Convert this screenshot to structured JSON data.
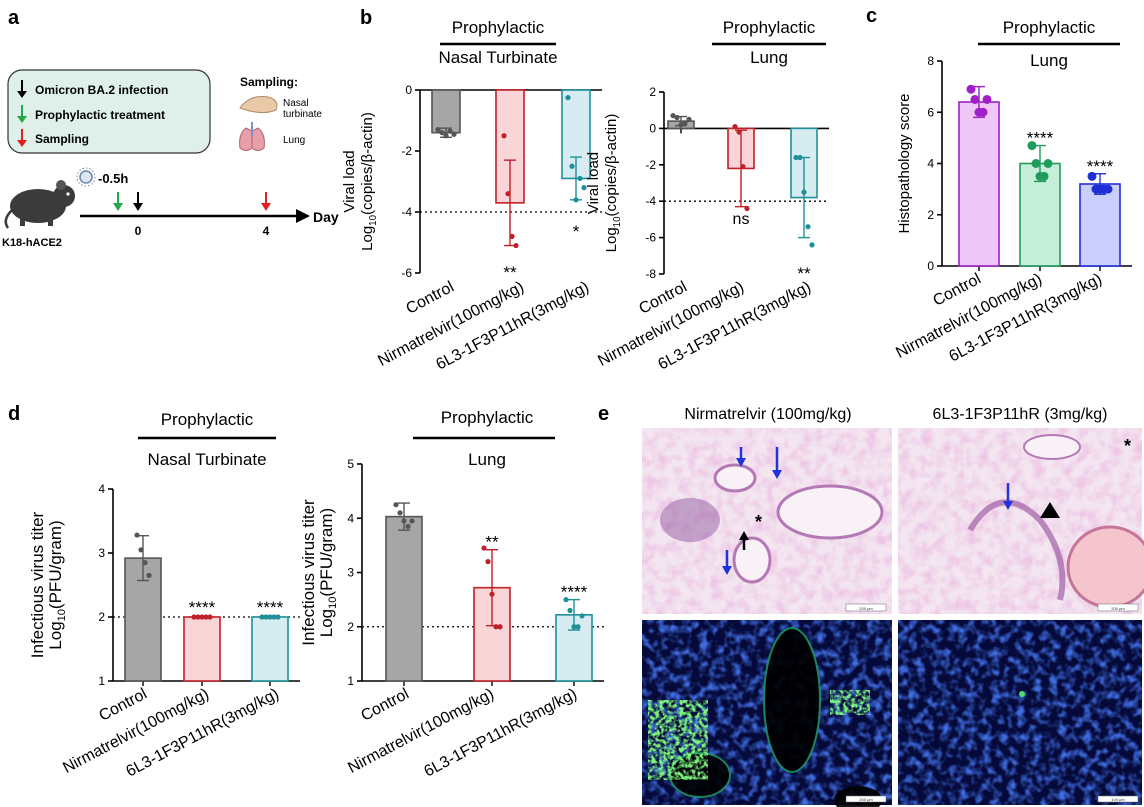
{
  "panel_letters": {
    "a": "a",
    "b": "b",
    "c": "c",
    "d": "d",
    "e": "e"
  },
  "schematic": {
    "legend": [
      {
        "label": "Omicron BA.2 infection",
        "color": "#000000"
      },
      {
        "label": "Prophylactic treatment",
        "color": "#22a846"
      },
      {
        "label": "Sampling",
        "color": "#e02020"
      }
    ],
    "sampling_title": "Sampling:",
    "nasal_label_1": "Nasal",
    "nasal_label_2": "turbinate",
    "lung_label": "Lung",
    "mouse_label": "K18-hACE2",
    "dose_time": "-0.5h",
    "tick_0": "0",
    "tick_4": "4",
    "axis_label": "Day"
  },
  "common": {
    "categories": [
      "Control",
      "Nirmatrelvir(100mg/kg)",
      "6L3-1F3P11hR(3mg/kg)"
    ],
    "prophylactic": "Prophylactic",
    "nasal": "Nasal Turbinate",
    "lung": "Lung",
    "viral_ylabel_1": "Viral load",
    "viral_ylabel_2": "Log",
    "viral_ylabel_sub": "10",
    "viral_ylabel_3": "(copies/β-actin)",
    "histo_ylabel": "Histopathology score",
    "pfu_ylabel_1": "Infectious virus titer",
    "pfu_ylabel_2": "Log",
    "pfu_ylabel_sub": "10",
    "pfu_ylabel_3": "(PFU/gram)"
  },
  "colors": {
    "control": "#555555",
    "nirmatrelvir": "#c0202a",
    "antibody": "#1f8f9a"
  },
  "chart_data": [
    {
      "id": "b-nasal",
      "type": "bar",
      "title": "Prophylactic",
      "subtitle": "Nasal Turbinate",
      "ylabel": "Viral load Log10(copies/β-actin)",
      "categories": [
        "Control",
        "Nirmatrelvir(100mg/kg)",
        "6L3-1F3P11hR(3mg/kg)"
      ],
      "values": [
        -1.4,
        -3.7,
        -2.9
      ],
      "errors": [
        0.15,
        1.4,
        0.7
      ],
      "ylim": [
        -6,
        0
      ],
      "yticks": [
        0,
        -2,
        -4,
        -6
      ],
      "baseline": "top",
      "dotted_line": -4,
      "points": [
        [
          -1.3,
          -1.4,
          -1.5,
          -1.35,
          -1.45
        ],
        [
          -1.5,
          -3.4,
          -4.8,
          -5.1
        ],
        [
          -0.25,
          -2.5,
          -3.6,
          -2.9,
          -3.2
        ]
      ],
      "significance": [
        "",
        "**",
        "*"
      ]
    },
    {
      "id": "b-lung",
      "type": "bar",
      "title": "Prophylactic",
      "subtitle": "Lung",
      "ylabel": "Viral load Log10(copies/β-actin)",
      "categories": [
        "Control",
        "Nirmatrelvir(100mg/kg)",
        "6L3-1F3P11hR(3mg/kg)"
      ],
      "values": [
        0.4,
        -2.2,
        -3.8
      ],
      "errors": [
        0.25,
        2.1,
        2.2
      ],
      "ylim": [
        -8,
        2
      ],
      "yticks": [
        2,
        0,
        -2,
        -4,
        -6,
        -8
      ],
      "baseline": "zero",
      "dotted_line": -4,
      "points": [
        [
          0.7,
          0.6,
          0.2,
          0.3,
          0.5
        ],
        [
          0.1,
          -0.2,
          -2.1,
          -4.4
        ],
        [
          -1.6,
          -1.6,
          -3.5,
          -5.4,
          -6.4
        ]
      ],
      "significance": [
        "",
        "ns",
        "**"
      ]
    },
    {
      "id": "c-lung",
      "type": "bar",
      "title": "Prophylactic",
      "subtitle": "Lung",
      "ylabel": "Histopathology score",
      "categories": [
        "Control",
        "Nirmatrelvir(100mg/kg)",
        "6L3-1F3P11hR(3mg/kg)"
      ],
      "values": [
        6.4,
        4.0,
        3.2
      ],
      "errors": [
        0.6,
        0.7,
        0.4
      ],
      "ylim": [
        0,
        8
      ],
      "yticks": [
        0,
        2,
        4,
        6,
        8
      ],
      "baseline": "zero",
      "points": [
        [
          6.9,
          6.5,
          6.0,
          6.0,
          6.5
        ],
        [
          4.7,
          4.0,
          3.5,
          3.5,
          4.0
        ],
        [
          3.5,
          3.0,
          3.0,
          3.0,
          3.0
        ]
      ],
      "significance": [
        "",
        "****",
        "****"
      ]
    },
    {
      "id": "d-nasal",
      "type": "bar",
      "title": "Prophylactic",
      "subtitle": "Nasal Turbinate",
      "ylabel": "Infectious virus titer Log10(PFU/gram)",
      "categories": [
        "Control",
        "Nirmatrelvir(100mg/kg)",
        "6L3-1F3P11hR(3mg/kg)"
      ],
      "values": [
        2.92,
        2.0,
        2.0
      ],
      "errors": [
        0.35,
        0,
        0
      ],
      "ylim": [
        1,
        4
      ],
      "yticks": [
        1,
        2,
        3,
        4
      ],
      "baseline": "bottom",
      "dotted_line": 2,
      "points": [
        [
          3.28,
          3.05,
          2.85,
          2.65
        ],
        [
          2.0,
          2.0,
          2.0,
          2.0,
          2.0
        ],
        [
          2.0,
          2.0,
          2.0,
          2.0,
          2.0
        ]
      ],
      "significance": [
        "",
        "****",
        "****"
      ]
    },
    {
      "id": "d-lung",
      "type": "bar",
      "title": "Prophylactic",
      "subtitle": "Lung",
      "ylabel": "Infectious virus titer Log10(PFU/gram)",
      "categories": [
        "Control",
        "Nirmatrelvir(100mg/kg)",
        "6L3-1F3P11hR(3mg/kg)"
      ],
      "values": [
        4.03,
        2.72,
        2.22
      ],
      "errors": [
        0.25,
        0.7,
        0.28
      ],
      "ylim": [
        1,
        5
      ],
      "yticks": [
        1,
        2,
        3,
        4,
        5
      ],
      "baseline": "bottom",
      "dotted_line": 2,
      "points": [
        [
          4.25,
          4.1,
          3.95,
          3.85,
          3.95
        ],
        [
          3.45,
          3.2,
          2.6,
          2.0,
          2.0
        ],
        [
          2.5,
          2.3,
          2.0,
          2.0,
          2.2
        ]
      ],
      "significance": [
        "",
        "**",
        "****"
      ]
    }
  ],
  "histology": {
    "col1_title": "Nirmatrelvir (100mg/kg)",
    "col2_title": "6L3-1F3P11hR (3mg/kg)",
    "asterisk": "*",
    "scale_bar": "200 μm",
    "scale_bar_if": "100 μm"
  }
}
